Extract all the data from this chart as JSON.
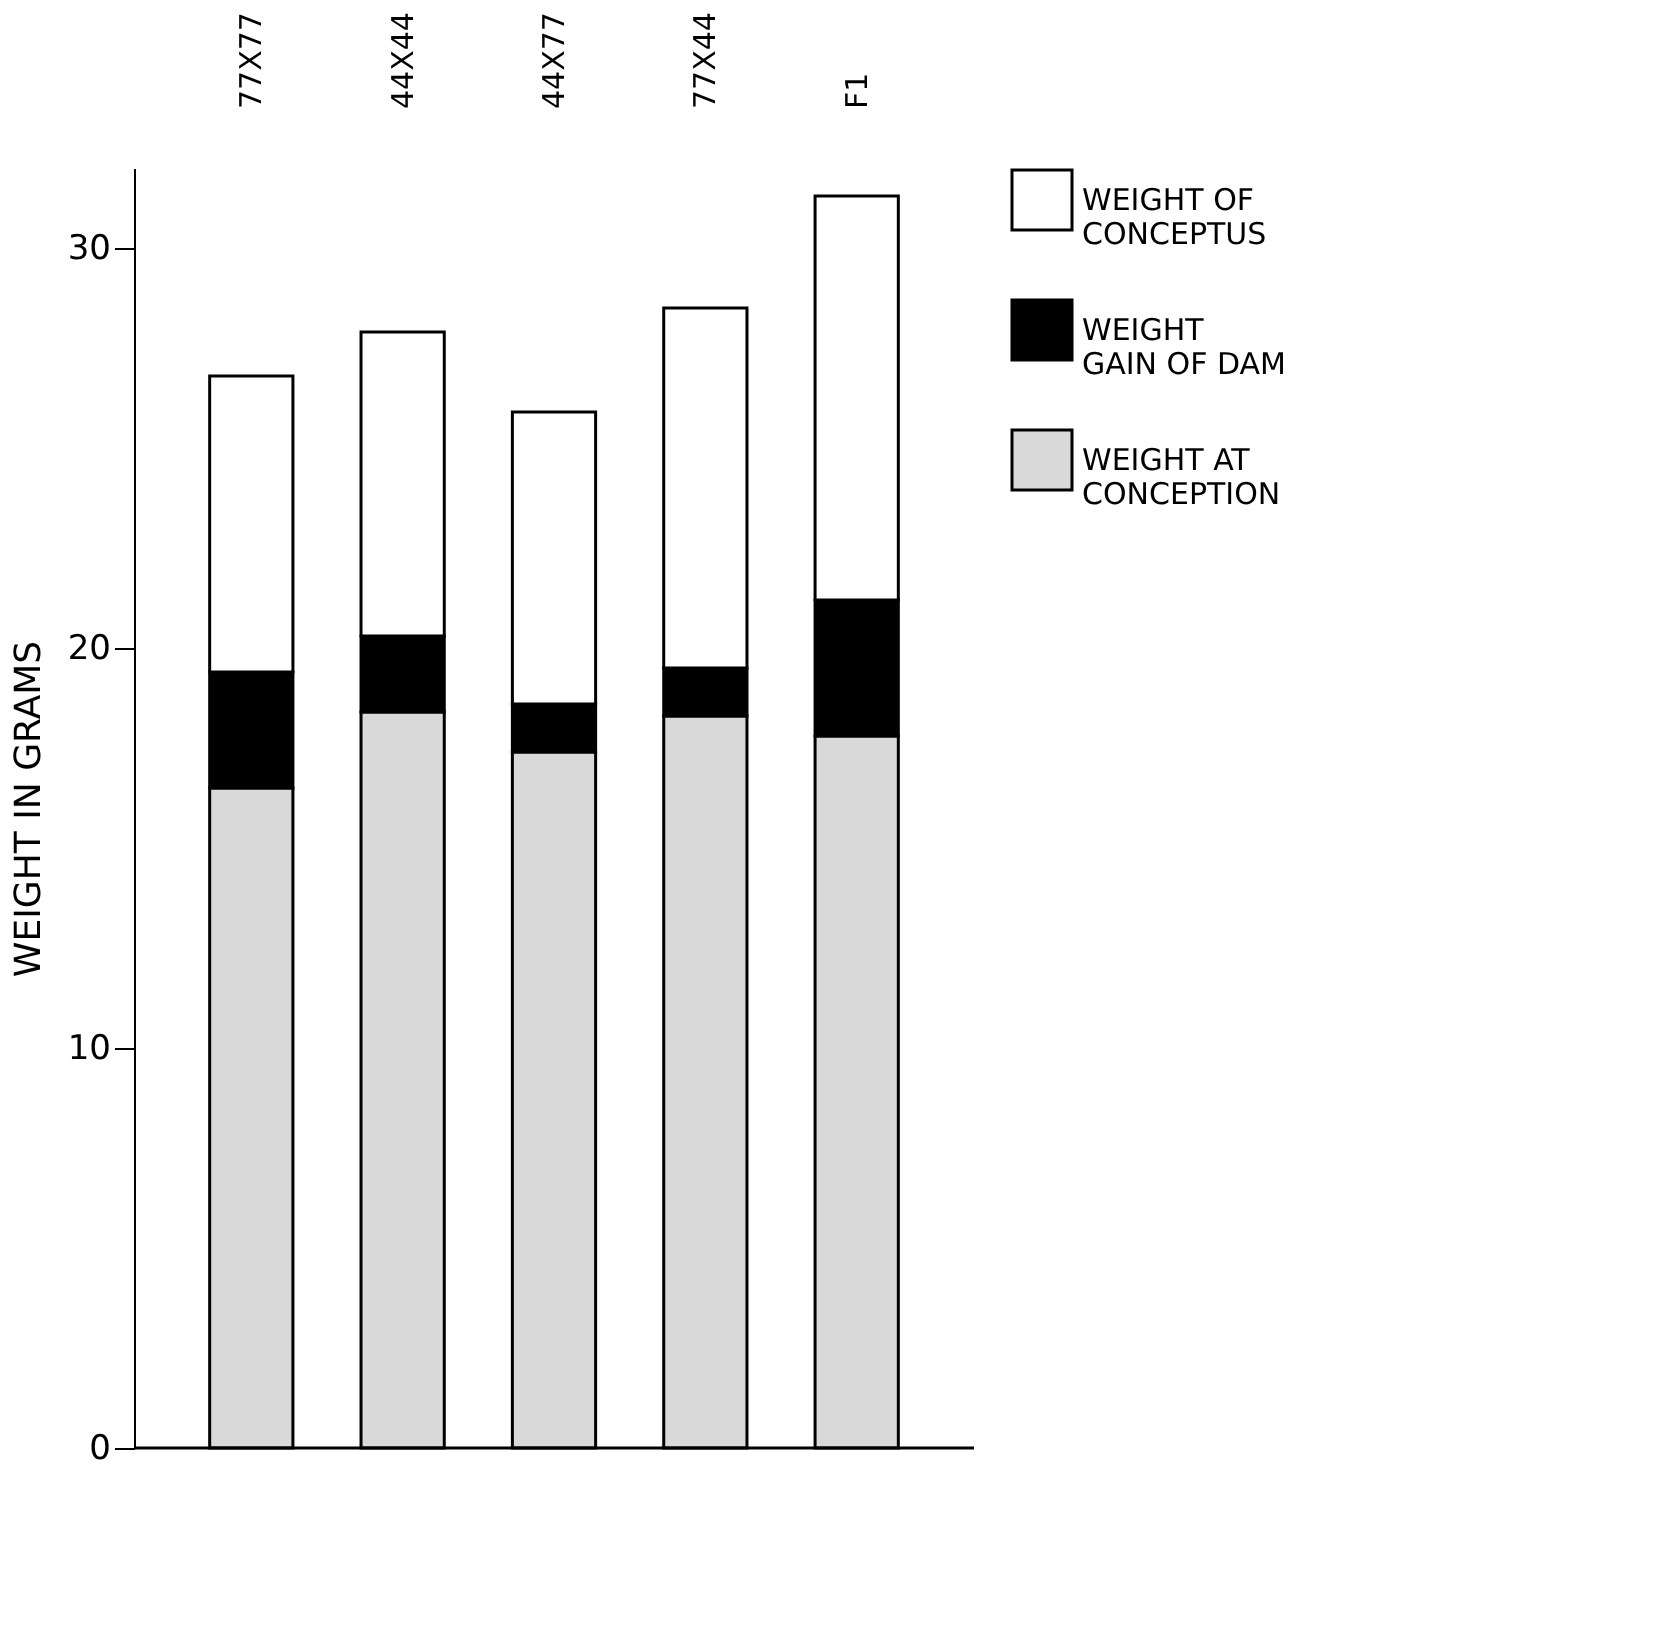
{
  "chart_data": {
    "type": "bar",
    "stacked": true,
    "ylabel": "WEIGHT   IN   GRAMS",
    "categories": [
      "77X77",
      "44X44",
      "44X77",
      "77X44",
      "F1"
    ],
    "series": [
      {
        "name": "WEIGHT AT CONCEPTION",
        "color": "#d9d9d9",
        "values": [
          16.5,
          18.4,
          17.4,
          18.3,
          17.8
        ]
      },
      {
        "name": "WEIGHT GAIN OF DAM",
        "color": "#000000",
        "values": [
          2.9,
          1.9,
          1.2,
          1.2,
          3.4
        ]
      },
      {
        "name": "WEIGHT OF CONCEPTUS",
        "color": "#ffffff",
        "values": [
          7.4,
          7.6,
          7.3,
          9.0,
          10.1
        ]
      }
    ],
    "ylim": [
      0,
      32
    ],
    "yticks": [
      0,
      10,
      20,
      30
    ],
    "grid": false,
    "legend": "right"
  }
}
